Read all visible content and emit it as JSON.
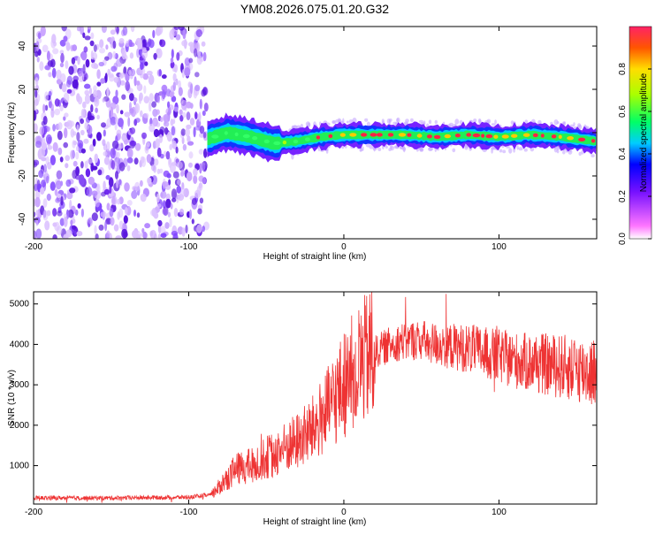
{
  "title": "YM08.2026.075.01.20.G32",
  "chart_data": [
    {
      "type": "heatmap",
      "name": "spectrogram",
      "xlabel": "Height of straight line (km)",
      "ylabel": "Frequency (Hz)",
      "xlim": [
        -200,
        163
      ],
      "ylim": [
        -49,
        49
      ],
      "xticks": [
        -200,
        -100,
        0,
        100
      ],
      "yticks": [
        -40,
        -20,
        0,
        20,
        40
      ],
      "noise_region_x": [
        -200,
        -88
      ],
      "signal_region_x": [
        -88,
        163
      ],
      "signal_track": [
        {
          "x": -88,
          "f": -3
        },
        {
          "x": -75,
          "f": 0
        },
        {
          "x": -60,
          "f": -2
        },
        {
          "x": -45,
          "f": -5
        },
        {
          "x": -30,
          "f": -4
        },
        {
          "x": -15,
          "f": -2
        },
        {
          "x": 0,
          "f": -1
        },
        {
          "x": 20,
          "f": -1
        },
        {
          "x": 40,
          "f": -1
        },
        {
          "x": 60,
          "f": -2
        },
        {
          "x": 80,
          "f": -1
        },
        {
          "x": 100,
          "f": -2
        },
        {
          "x": 120,
          "f": -1
        },
        {
          "x": 140,
          "f": -2
        },
        {
          "x": 163,
          "f": -4
        }
      ],
      "colorbar": {
        "label": "Normalized spectral amplitude",
        "ticks": [
          "0.0",
          "0.2",
          "0.4",
          "0.6",
          "0.8"
        ],
        "range": [
          0,
          1
        ]
      }
    },
    {
      "type": "line",
      "name": "snr",
      "xlabel": "Height of straight line (km)",
      "ylabel": "SNR (10 * v/v)",
      "xlim": [
        -200,
        163
      ],
      "ylim": [
        50,
        5300
      ],
      "xticks": [
        -200,
        -100,
        0,
        100
      ],
      "yticks": [
        1000,
        2000,
        3000,
        4000,
        5000
      ],
      "color": "#ee3333",
      "series": [
        {
          "name": "SNR",
          "x": [
            -200,
            -150,
            -100,
            -85,
            -80,
            -75,
            -70,
            -60,
            -50,
            -40,
            -30,
            -20,
            -10,
            0,
            10,
            20,
            30,
            40,
            50,
            60,
            70,
            80,
            90,
            100,
            110,
            120,
            130,
            140,
            150,
            163
          ],
          "values": [
            200,
            200,
            220,
            280,
            500,
            700,
            900,
            1000,
            1200,
            1400,
            1600,
            1900,
            2400,
            3000,
            3500,
            3800,
            4000,
            4100,
            4100,
            4000,
            3950,
            3900,
            3800,
            3700,
            3600,
            3550,
            3500,
            3450,
            3400,
            3300
          ]
        }
      ]
    }
  ]
}
